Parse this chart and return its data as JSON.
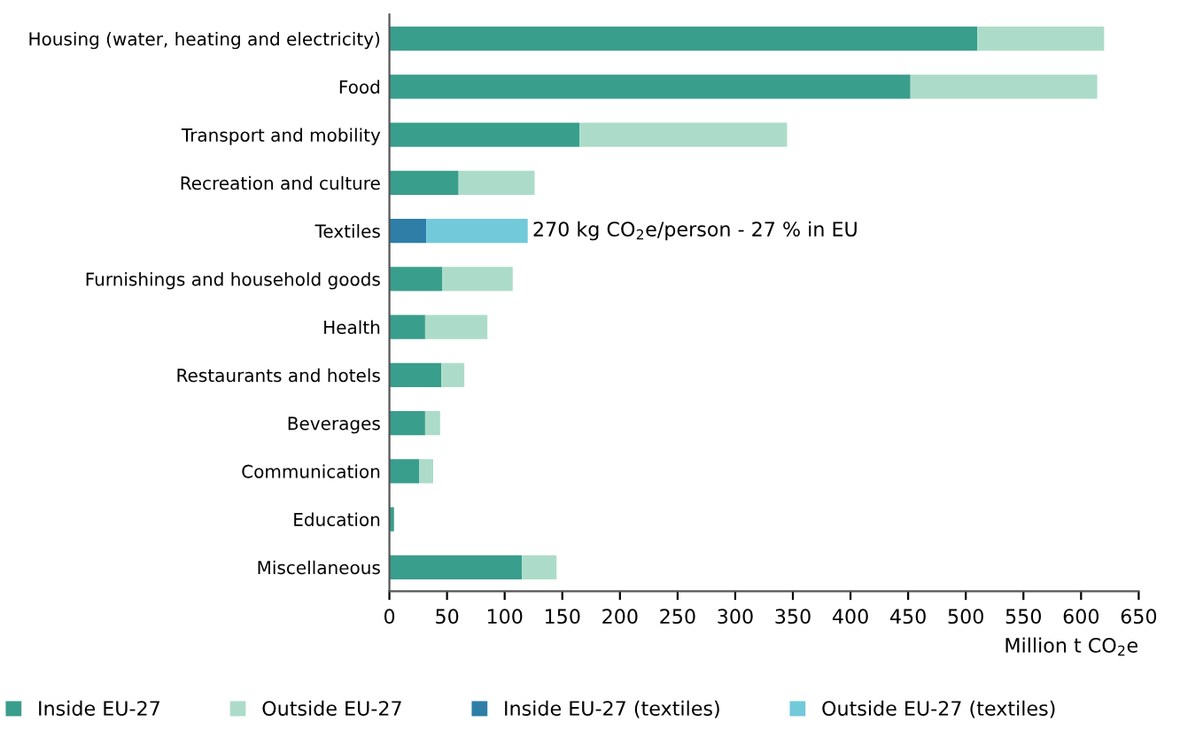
{
  "chart_data": {
    "type": "bar",
    "orientation": "horizontal",
    "stacked": true,
    "categories": [
      "Housing (water, heating and electricity)",
      "Food",
      "Transport and mobility",
      "Recreation and culture",
      "Textiles",
      "Furnishings and household goods",
      "Health",
      "Restaurants and hotels",
      "Beverages",
      "Communication",
      "Education",
      "Miscellaneous"
    ],
    "series": [
      {
        "name": "Inside EU-27",
        "color": "#3a9e8c",
        "values": [
          510,
          452,
          165,
          60,
          null,
          46,
          31,
          45,
          31,
          26,
          4,
          115
        ]
      },
      {
        "name": "Outside EU-27",
        "color": "#acdcc9",
        "values": [
          110,
          162,
          180,
          66,
          null,
          61,
          54,
          20,
          13,
          12,
          null,
          30
        ]
      },
      {
        "name": "Inside EU-27 (textiles)",
        "color": "#2e7ea8",
        "values": [
          null,
          null,
          null,
          null,
          32,
          null,
          null,
          null,
          null,
          null,
          null,
          null
        ]
      },
      {
        "name": "Outside EU-27 (textiles)",
        "color": "#72c9da",
        "values": [
          null,
          null,
          null,
          null,
          88,
          null,
          null,
          null,
          null,
          null,
          null,
          null
        ]
      }
    ],
    "xlim": [
      0,
      650
    ],
    "xticks": [
      0,
      50,
      100,
      150,
      200,
      250,
      300,
      350,
      400,
      450,
      500,
      550,
      600,
      650
    ],
    "xlabel": "Million t CO$_{2}$e",
    "annotations": [
      {
        "text": "270 kg CO$_{2}$e/person - 27 % in EU",
        "x": 120,
        "y": "Textiles"
      }
    ],
    "grid": false,
    "legend": "bottom"
  }
}
